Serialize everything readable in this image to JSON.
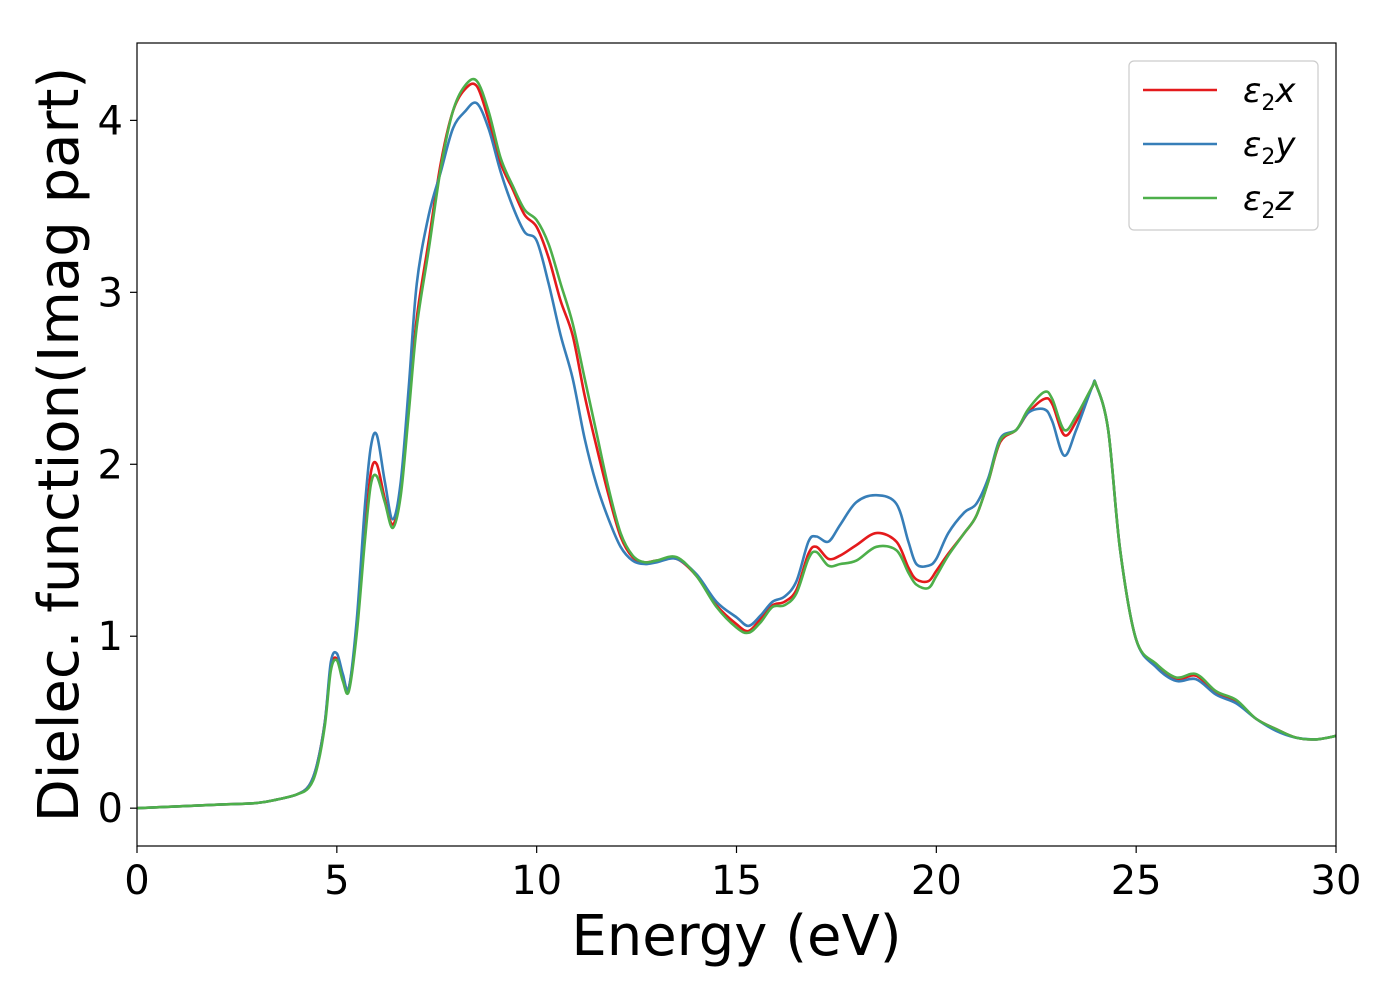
{
  "chart_data": {
    "type": "line",
    "xlabel": "Energy (eV)",
    "ylabel": "Dielec. function(Imag part)",
    "xlim": [
      0,
      30
    ],
    "ylim": [
      -0.22,
      4.45
    ],
    "xticks": [
      0,
      5,
      10,
      15,
      20,
      25,
      30
    ],
    "yticks": [
      0,
      1,
      2,
      3,
      4
    ],
    "grid": false,
    "legend_position": "top-right",
    "series": [
      {
        "legend_base": "ε",
        "legend_sub": "2",
        "legend_suffix": "x",
        "color": "#e41a1c",
        "x": [
          0,
          1,
          2,
          3,
          3.5,
          4,
          4.3,
          4.5,
          4.7,
          4.85,
          5.0,
          5.15,
          5.3,
          5.5,
          5.7,
          5.85,
          6.0,
          6.2,
          6.4,
          6.6,
          6.8,
          7.0,
          7.3,
          7.6,
          7.9,
          8.2,
          8.5,
          8.8,
          9.1,
          9.4,
          9.7,
          10.0,
          10.3,
          10.6,
          10.9,
          11.2,
          11.5,
          11.8,
          12.1,
          12.4,
          12.7,
          13.0,
          13.5,
          14.0,
          14.5,
          15.0,
          15.3,
          15.6,
          15.9,
          16.2,
          16.5,
          16.8,
          17.0,
          17.3,
          17.6,
          18.0,
          18.5,
          19.0,
          19.3,
          19.5,
          19.8,
          20.0,
          20.3,
          20.7,
          21.0,
          21.3,
          21.6,
          22.0,
          22.3,
          22.7,
          22.9,
          23.2,
          23.5,
          23.9,
          24.0,
          24.3,
          24.6,
          25.0,
          25.5,
          26.0,
          26.5,
          27.0,
          27.5,
          28.0,
          28.5,
          29.0,
          29.5,
          30.0
        ],
        "values": [
          0.0,
          0.01,
          0.02,
          0.03,
          0.05,
          0.08,
          0.13,
          0.25,
          0.5,
          0.82,
          0.87,
          0.75,
          0.7,
          1.05,
          1.6,
          1.95,
          2.0,
          1.8,
          1.65,
          1.85,
          2.35,
          2.85,
          3.3,
          3.75,
          4.05,
          4.18,
          4.2,
          4.0,
          3.75,
          3.6,
          3.45,
          3.38,
          3.2,
          2.95,
          2.75,
          2.4,
          2.1,
          1.82,
          1.58,
          1.46,
          1.43,
          1.44,
          1.45,
          1.35,
          1.18,
          1.07,
          1.03,
          1.1,
          1.18,
          1.2,
          1.27,
          1.48,
          1.52,
          1.45,
          1.47,
          1.53,
          1.6,
          1.55,
          1.4,
          1.33,
          1.32,
          1.38,
          1.48,
          1.6,
          1.7,
          1.9,
          2.13,
          2.2,
          2.3,
          2.38,
          2.35,
          2.17,
          2.25,
          2.45,
          2.46,
          2.2,
          1.5,
          0.98,
          0.83,
          0.75,
          0.77,
          0.67,
          0.62,
          0.52,
          0.46,
          0.41,
          0.4,
          0.42
        ]
      },
      {
        "legend_base": "ε",
        "legend_sub": "2",
        "legend_suffix": "y",
        "color": "#377eb8",
        "x": [
          0,
          1,
          2,
          3,
          3.5,
          4,
          4.3,
          4.5,
          4.7,
          4.85,
          5.0,
          5.15,
          5.3,
          5.5,
          5.7,
          5.85,
          6.0,
          6.2,
          6.4,
          6.6,
          6.8,
          7.0,
          7.3,
          7.6,
          7.9,
          8.2,
          8.5,
          8.8,
          9.1,
          9.4,
          9.7,
          10.0,
          10.3,
          10.6,
          10.9,
          11.2,
          11.5,
          11.8,
          12.1,
          12.4,
          12.7,
          13.0,
          13.5,
          14.0,
          14.5,
          15.0,
          15.3,
          15.6,
          15.9,
          16.2,
          16.5,
          16.8,
          17.0,
          17.3,
          17.6,
          18.0,
          18.5,
          19.0,
          19.3,
          19.5,
          19.8,
          20.0,
          20.3,
          20.7,
          21.0,
          21.3,
          21.6,
          22.0,
          22.3,
          22.7,
          22.9,
          23.2,
          23.5,
          23.9,
          24.0,
          24.3,
          24.6,
          25.0,
          25.5,
          26.0,
          26.5,
          27.0,
          27.5,
          28.0,
          28.5,
          29.0,
          29.5,
          30.0
        ],
        "values": [
          0.0,
          0.01,
          0.02,
          0.03,
          0.05,
          0.08,
          0.13,
          0.25,
          0.5,
          0.85,
          0.9,
          0.78,
          0.7,
          1.1,
          1.75,
          2.1,
          2.17,
          1.9,
          1.68,
          1.9,
          2.45,
          3.05,
          3.45,
          3.7,
          3.95,
          4.05,
          4.1,
          3.95,
          3.7,
          3.5,
          3.35,
          3.3,
          3.05,
          2.75,
          2.5,
          2.15,
          1.88,
          1.68,
          1.52,
          1.44,
          1.42,
          1.43,
          1.45,
          1.36,
          1.2,
          1.11,
          1.06,
          1.12,
          1.2,
          1.23,
          1.32,
          1.55,
          1.58,
          1.55,
          1.65,
          1.78,
          1.82,
          1.77,
          1.55,
          1.42,
          1.41,
          1.45,
          1.6,
          1.72,
          1.77,
          1.92,
          2.15,
          2.2,
          2.3,
          2.32,
          2.25,
          2.05,
          2.2,
          2.45,
          2.46,
          2.2,
          1.5,
          0.98,
          0.82,
          0.74,
          0.75,
          0.66,
          0.61,
          0.52,
          0.45,
          0.41,
          0.4,
          0.42
        ]
      },
      {
        "legend_base": "ε",
        "legend_sub": "2",
        "legend_suffix": "z",
        "color": "#4daf4a",
        "x": [
          0,
          1,
          2,
          3,
          3.5,
          4,
          4.3,
          4.5,
          4.7,
          4.85,
          5.0,
          5.15,
          5.3,
          5.5,
          5.7,
          5.85,
          6.0,
          6.2,
          6.4,
          6.6,
          6.8,
          7.0,
          7.3,
          7.6,
          7.9,
          8.2,
          8.5,
          8.8,
          9.1,
          9.4,
          9.7,
          10.0,
          10.3,
          10.6,
          10.9,
          11.2,
          11.5,
          11.8,
          12.1,
          12.4,
          12.7,
          13.0,
          13.5,
          14.0,
          14.5,
          15.0,
          15.3,
          15.6,
          15.9,
          16.2,
          16.5,
          16.8,
          17.0,
          17.3,
          17.6,
          18.0,
          18.5,
          19.0,
          19.3,
          19.5,
          19.8,
          20.0,
          20.3,
          20.7,
          21.0,
          21.3,
          21.6,
          22.0,
          22.3,
          22.7,
          22.9,
          23.2,
          23.5,
          23.9,
          24.0,
          24.3,
          24.6,
          25.0,
          25.5,
          26.0,
          26.5,
          27.0,
          27.5,
          28.0,
          28.5,
          29.0,
          29.5,
          30.0
        ],
        "values": [
          0.0,
          0.01,
          0.02,
          0.03,
          0.05,
          0.08,
          0.12,
          0.23,
          0.48,
          0.8,
          0.86,
          0.74,
          0.68,
          1.02,
          1.55,
          1.88,
          1.93,
          1.78,
          1.63,
          1.82,
          2.3,
          2.8,
          3.25,
          3.72,
          4.05,
          4.2,
          4.23,
          4.05,
          3.78,
          3.62,
          3.48,
          3.42,
          3.28,
          3.05,
          2.82,
          2.5,
          2.18,
          1.86,
          1.6,
          1.47,
          1.43,
          1.44,
          1.46,
          1.35,
          1.17,
          1.05,
          1.02,
          1.08,
          1.17,
          1.18,
          1.25,
          1.45,
          1.49,
          1.41,
          1.42,
          1.44,
          1.52,
          1.5,
          1.37,
          1.3,
          1.28,
          1.35,
          1.47,
          1.6,
          1.7,
          1.9,
          2.14,
          2.2,
          2.32,
          2.42,
          2.38,
          2.2,
          2.28,
          2.45,
          2.46,
          2.2,
          1.5,
          0.98,
          0.84,
          0.76,
          0.78,
          0.68,
          0.63,
          0.52,
          0.46,
          0.41,
          0.4,
          0.42
        ]
      }
    ]
  }
}
